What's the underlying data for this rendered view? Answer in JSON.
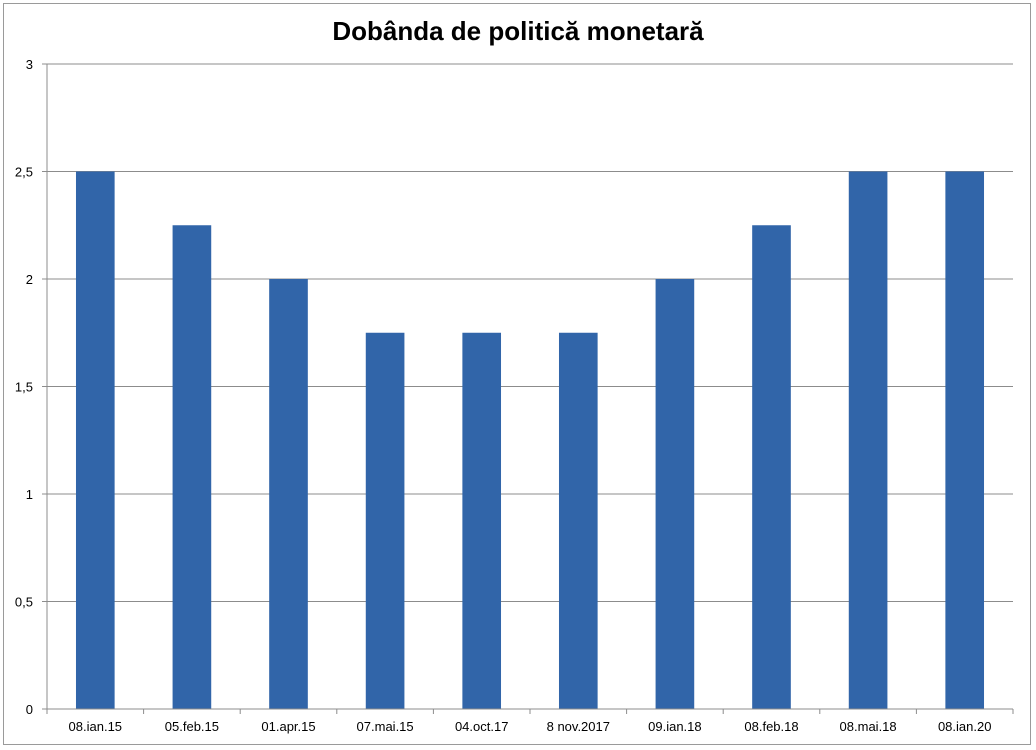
{
  "chart_data": {
    "type": "bar",
    "title": "Dobânda de politică monetară",
    "xlabel": "",
    "ylabel": "",
    "categories": [
      "08.ian.15",
      "05.feb.15",
      "01.apr.15",
      "07.mai.15",
      "04.oct.17",
      "8 nov.2017",
      "09.ian.18",
      "08.feb.18",
      "08.mai.18",
      "08.ian.20"
    ],
    "values": [
      2.5,
      2.25,
      2,
      1.75,
      1.75,
      1.75,
      2,
      2.25,
      2.5,
      2.5
    ],
    "ylim": [
      0,
      3
    ],
    "yticks": [
      0,
      0.5,
      1,
      1.5,
      2,
      2.5,
      3
    ],
    "ytick_labels": [
      "0",
      "0,5",
      "1",
      "1,5",
      "2",
      "2,5",
      "3"
    ],
    "grid": true,
    "legend": "none",
    "colors": {
      "bar": "#3165A9",
      "grid": "#8c8c8c",
      "axis": "#8c8c8c"
    }
  }
}
